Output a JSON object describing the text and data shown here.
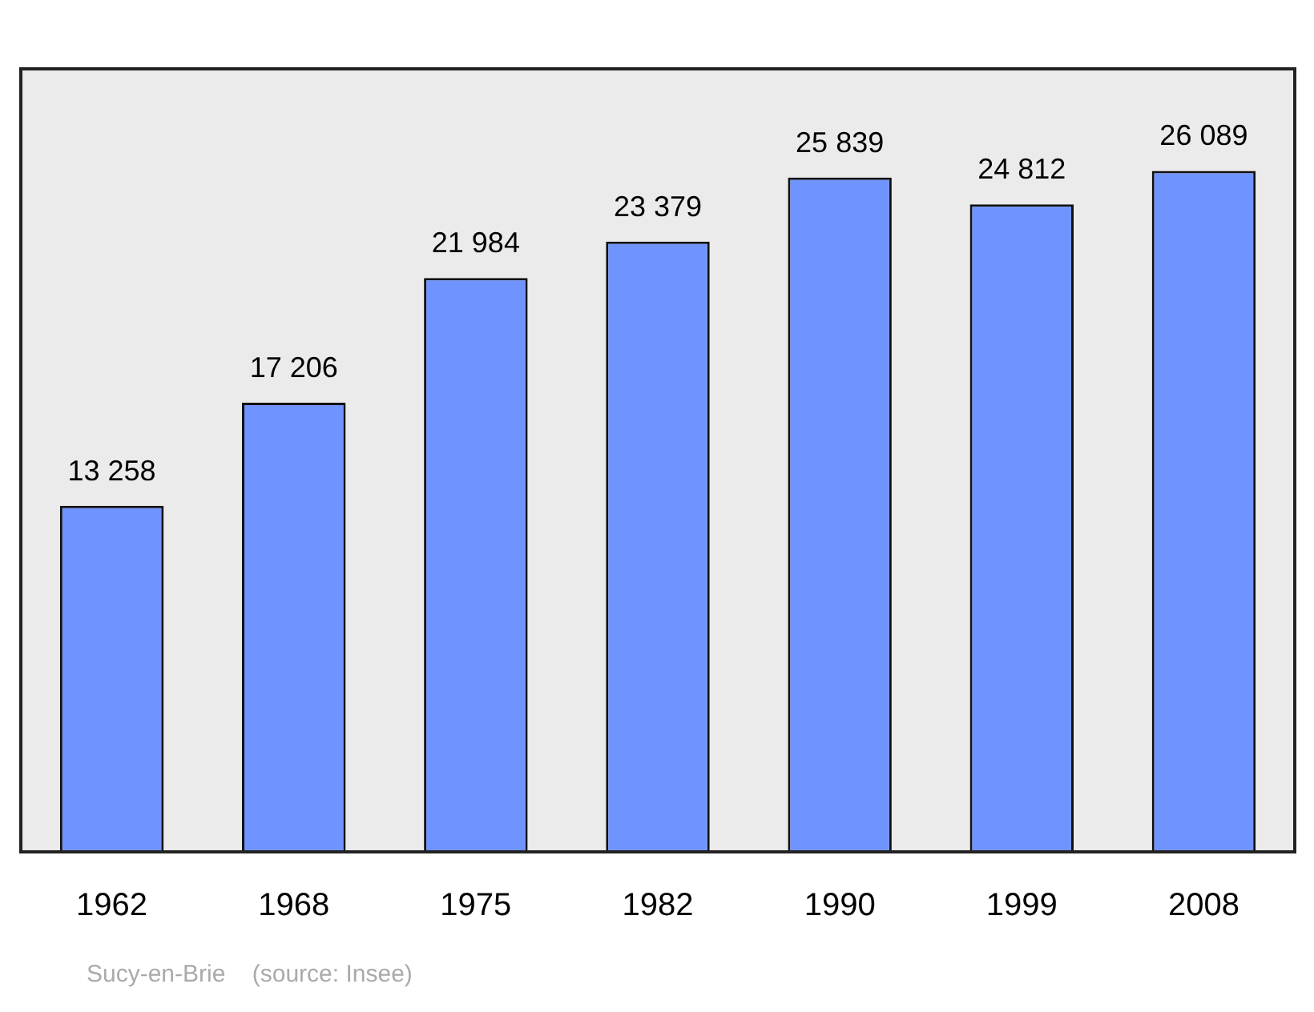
{
  "chart_data": {
    "type": "bar",
    "categories": [
      "1962",
      "1968",
      "1975",
      "1982",
      "1990",
      "1999",
      "2008"
    ],
    "values": [
      13258,
      17206,
      21984,
      23379,
      25839,
      24812,
      26089
    ],
    "value_labels": [
      "13 258",
      "17 206",
      "21 984",
      "23 379",
      "25 839",
      "24 812",
      "26 089"
    ],
    "color": "#7094ff",
    "tick_labels": "x",
    "annotations": [
      "Sucy-en-Brie    (source: Insee)"
    ]
  }
}
